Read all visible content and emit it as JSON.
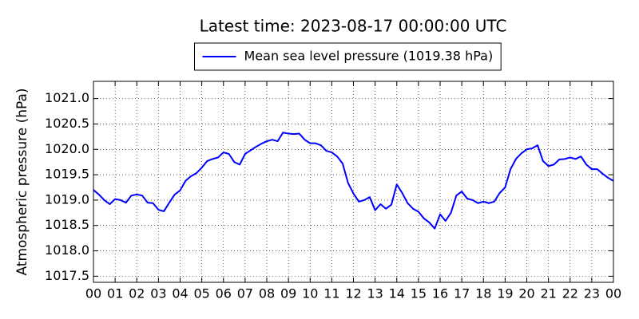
{
  "chart_data": {
    "type": "line",
    "title": "Latest time: 2023-08-17 00:00:00 UTC",
    "ylabel": "Atmospheric pressure (hPa)",
    "legend": "upper center",
    "grid": true,
    "x": [
      0,
      0.25,
      0.5,
      0.75,
      1,
      1.25,
      1.5,
      1.75,
      2,
      2.25,
      2.5,
      2.75,
      3,
      3.25,
      3.5,
      3.75,
      4,
      4.25,
      4.5,
      4.75,
      5,
      5.25,
      5.5,
      5.75,
      6,
      6.25,
      6.5,
      6.75,
      7,
      7.25,
      7.5,
      7.75,
      8,
      8.25,
      8.5,
      8.75,
      9,
      9.25,
      9.5,
      9.75,
      10,
      10.25,
      10.5,
      10.75,
      11,
      11.25,
      11.5,
      11.75,
      12,
      12.25,
      12.5,
      12.75,
      13,
      13.25,
      13.5,
      13.75,
      14,
      14.25,
      14.5,
      14.75,
      15,
      15.25,
      15.5,
      15.75,
      16,
      16.25,
      16.5,
      16.75,
      17,
      17.25,
      17.5,
      17.75,
      18,
      18.25,
      18.5,
      18.75,
      19,
      19.25,
      19.5,
      19.75,
      20,
      20.25,
      20.5,
      20.75,
      21,
      21.25,
      21.5,
      21.75,
      22,
      22.25,
      22.5,
      22.75,
      23,
      23.25,
      23.5,
      23.75,
      24
    ],
    "series": [
      {
        "name": "Mean sea level pressure (1019.38 hPa)",
        "color": "#0000ff",
        "values": [
          1019.2,
          1019.11,
          1019.0,
          1018.92,
          1019.02,
          1019.0,
          1018.95,
          1019.09,
          1019.11,
          1019.09,
          1018.95,
          1018.94,
          1018.81,
          1018.78,
          1018.95,
          1019.11,
          1019.19,
          1019.38,
          1019.47,
          1019.53,
          1019.64,
          1019.77,
          1019.81,
          1019.84,
          1019.94,
          1019.91,
          1019.75,
          1019.7,
          1019.91,
          1019.98,
          1020.05,
          1020.11,
          1020.16,
          1020.19,
          1020.16,
          1020.33,
          1020.31,
          1020.3,
          1020.31,
          1020.19,
          1020.12,
          1020.12,
          1020.08,
          1019.97,
          1019.94,
          1019.86,
          1019.72,
          1019.34,
          1019.13,
          1018.97,
          1019.0,
          1019.06,
          1018.8,
          1018.92,
          1018.83,
          1018.91,
          1019.31,
          1019.14,
          1018.94,
          1018.83,
          1018.77,
          1018.64,
          1018.56,
          1018.44,
          1018.72,
          1018.59,
          1018.75,
          1019.09,
          1019.17,
          1019.03,
          1019.0,
          1018.94,
          1018.97,
          1018.94,
          1018.97,
          1019.14,
          1019.25,
          1019.61,
          1019.81,
          1019.92,
          1020.0,
          1020.02,
          1020.08,
          1019.77,
          1019.67,
          1019.7,
          1019.8,
          1019.81,
          1019.84,
          1019.81,
          1019.86,
          1019.7,
          1019.61,
          1019.61,
          1019.52,
          1019.44,
          1019.38
        ]
      }
    ],
    "xlim": [
      0,
      24
    ],
    "xticks": [
      {
        "value": 0,
        "label": "00"
      },
      {
        "value": 1,
        "label": "01"
      },
      {
        "value": 2,
        "label": "02"
      },
      {
        "value": 3,
        "label": "03"
      },
      {
        "value": 4,
        "label": "04"
      },
      {
        "value": 5,
        "label": "05"
      },
      {
        "value": 6,
        "label": "06"
      },
      {
        "value": 7,
        "label": "07"
      },
      {
        "value": 8,
        "label": "08"
      },
      {
        "value": 9,
        "label": "09"
      },
      {
        "value": 10,
        "label": "10"
      },
      {
        "value": 11,
        "label": "11"
      },
      {
        "value": 12,
        "label": "12"
      },
      {
        "value": 13,
        "label": "13"
      },
      {
        "value": 14,
        "label": "14"
      },
      {
        "value": 15,
        "label": "15"
      },
      {
        "value": 16,
        "label": "16"
      },
      {
        "value": 17,
        "label": "17"
      },
      {
        "value": 18,
        "label": "18"
      },
      {
        "value": 19,
        "label": "19"
      },
      {
        "value": 20,
        "label": "20"
      },
      {
        "value": 21,
        "label": "21"
      },
      {
        "value": 22,
        "label": "22"
      },
      {
        "value": 23,
        "label": "23"
      },
      {
        "value": 24,
        "label": "00"
      }
    ],
    "ylim": [
      1017.38,
      1021.34
    ],
    "yticks": [
      1017.5,
      {
        "value": 1018,
        "label": "1018.0"
      },
      1018.5,
      {
        "value": 1019,
        "label": "1019.0"
      },
      1019.5,
      {
        "value": 1020,
        "label": "1020.0"
      },
      1020.5,
      {
        "value": 1021,
        "label": "1021.0"
      }
    ]
  }
}
